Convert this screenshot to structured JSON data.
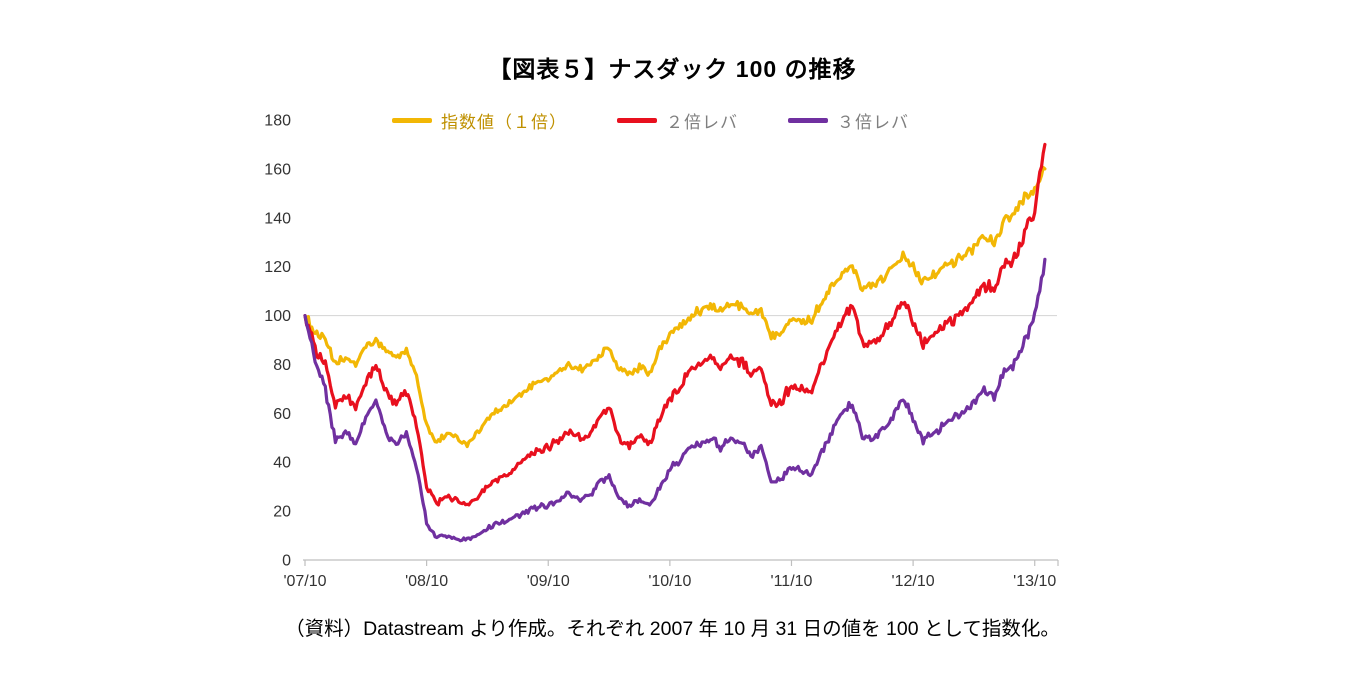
{
  "header": {
    "title": "【図表５】ナスダック 100 の推移"
  },
  "footer": {
    "caption": "（資料）Datastream より作成。それぞれ 2007 年 10 月 31 日の値を 100 として指数化。"
  },
  "colors": {
    "axis": "#BFBFBF",
    "gridline": "#D9D9D9",
    "tick_text": "#333333",
    "background": "#FFFFFF"
  },
  "chart_data": {
    "type": "line",
    "title": "【図表５】ナスダック 100 の推移",
    "xlabel": "",
    "ylabel": "",
    "ylim": [
      0,
      180
    ],
    "y_ticks": [
      0,
      20,
      40,
      60,
      80,
      100,
      120,
      140,
      160,
      180
    ],
    "x_tick_labels": [
      "'07/10",
      "'08/10",
      "'09/10",
      "'10/10",
      "'11/10",
      "'12/10",
      "'13/10"
    ],
    "x_tick_positions": [
      0,
      12,
      24,
      36,
      48,
      60,
      72
    ],
    "x_max": 74,
    "x_unit": "months",
    "grid": "horizontal line at 100 only",
    "legend_position": "top",
    "baseline_value": 100,
    "series": [
      {
        "name": "指数値（１倍）",
        "color": "#F2B705",
        "label_color": "#BF9000",
        "volatility": 2.2,
        "values": [
          100,
          93,
          90,
          80,
          83,
          80,
          87,
          90,
          85,
          83,
          86,
          75,
          55,
          48,
          52,
          50,
          47,
          52,
          58,
          61,
          63,
          67,
          70,
          73,
          74,
          77,
          80,
          78,
          79,
          84,
          87,
          78,
          76,
          79,
          76,
          86,
          92,
          96,
          100,
          102,
          104,
          102,
          105,
          104,
          100,
          102,
          92,
          94,
          99,
          98,
          98,
          106,
          112,
          118,
          121,
          111,
          112,
          115,
          120,
          126,
          120,
          114,
          117,
          120,
          122,
          125,
          128,
          132,
          130,
          138,
          141,
          148,
          152,
          160
        ]
      },
      {
        "name": "２倍レバ",
        "color": "#E8101E",
        "label_color": "#7F7F7F",
        "volatility": 3.2,
        "values": [
          100,
          87,
          80,
          63,
          67,
          62,
          73,
          79,
          69,
          64,
          69,
          55,
          30,
          23,
          26,
          24,
          22,
          25,
          30,
          33,
          35,
          39,
          42,
          45,
          46,
          49,
          53,
          50,
          51,
          58,
          62,
          50,
          47,
          51,
          47,
          58,
          66,
          71,
          77,
          80,
          83,
          79,
          83,
          81,
          76,
          79,
          63,
          65,
          72,
          70,
          69,
          80,
          90,
          99,
          104,
          88,
          88,
          92,
          98,
          106,
          98,
          88,
          92,
          96,
          99,
          103,
          107,
          113,
          109,
          121,
          124,
          134,
          142,
          170
        ]
      },
      {
        "name": "３倍レバ",
        "color": "#7030A0",
        "label_color": "#7F7F7F",
        "volatility": 3.0,
        "values": [
          100,
          80,
          70,
          48,
          53,
          47,
          58,
          65,
          52,
          47,
          52,
          38,
          15,
          9,
          10,
          9,
          8,
          10,
          13,
          15,
          16,
          18,
          20,
          22,
          22,
          24,
          27,
          25,
          26,
          31,
          34,
          25,
          22,
          25,
          22,
          30,
          37,
          41,
          46,
          48,
          50,
          46,
          50,
          48,
          43,
          46,
          32,
          33,
          38,
          37,
          35,
          44,
          53,
          61,
          64,
          50,
          49,
          53,
          58,
          66,
          58,
          49,
          52,
          55,
          58,
          61,
          65,
          70,
          66,
          77,
          80,
          90,
          100,
          123
        ]
      }
    ]
  }
}
